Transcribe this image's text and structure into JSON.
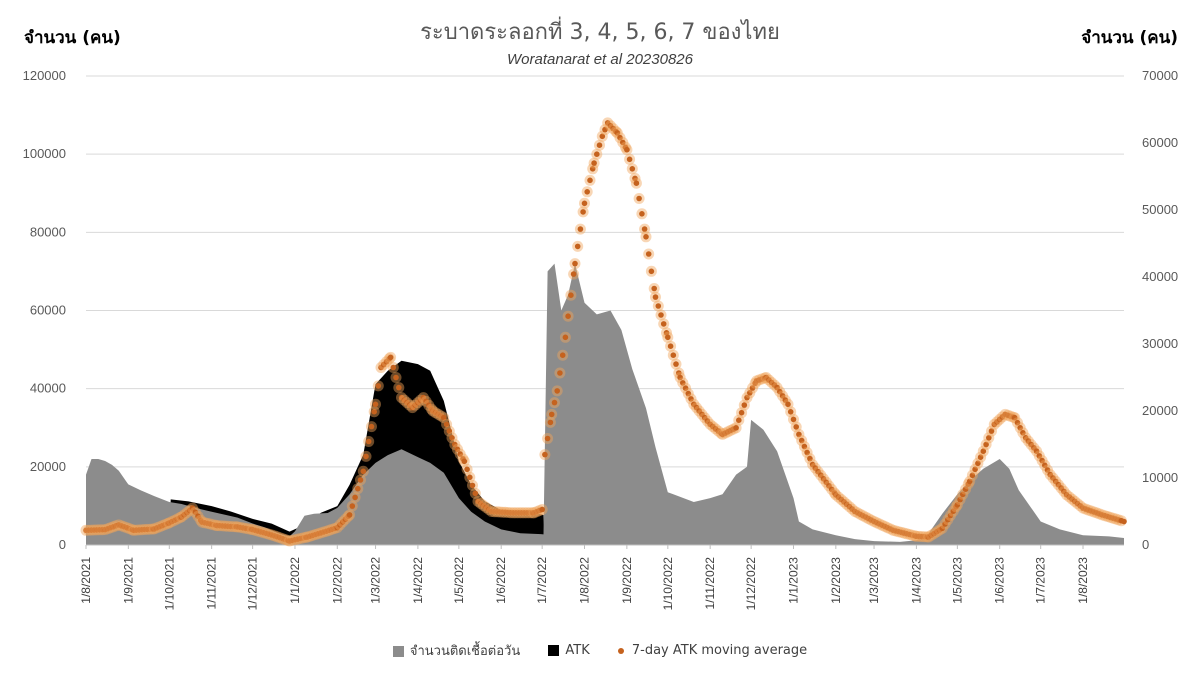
{
  "colors": {
    "cases": "#8c8c8c",
    "atk": "#000000",
    "ma": "#c5621e",
    "ma_glow": "#f0a55a",
    "grid": "#d9d9d9"
  },
  "chart_data": {
    "type": "area",
    "title": "ระบาดระลอกที่ 3, 4, 5, 6, 7 ของไทย",
    "subtitle": "Woratanarat et al 20230826",
    "ylabel_left": "จำนวน (คน)",
    "ylabel_right": "จำนวน (คน)",
    "ylim_left": [
      0,
      120000
    ],
    "ylim_right": [
      0,
      70000
    ],
    "yticks_left": [
      "0",
      "20000",
      "40000",
      "60000",
      "80000",
      "100000",
      "120000"
    ],
    "yticks_right": [
      "0",
      "10000",
      "20000",
      "30000",
      "40000",
      "50000",
      "60000",
      "70000"
    ],
    "x_start": "2021-08-01",
    "x_end": "2023-08-31",
    "x_ticks": [
      "1/8/2021",
      "1/9/2021",
      "1/10/2021",
      "1/11/2021",
      "1/12/2021",
      "1/1/2022",
      "1/2/2022",
      "1/3/2022",
      "1/4/2022",
      "1/5/2022",
      "1/6/2022",
      "1/7/2022",
      "1/8/2022",
      "1/9/2022",
      "1/10/2022",
      "1/11/2022",
      "1/12/2022",
      "1/1/2023",
      "1/2/2023",
      "1/3/2023",
      "1/4/2023",
      "1/5/2023",
      "1/6/2023",
      "1/7/2023",
      "1/8/2023"
    ],
    "grid": true,
    "legend_position": "bottom",
    "series": [
      {
        "name": "จำนวนติดเชื้อต่อวัน",
        "kind": "area",
        "axis": "left",
        "points": [
          [
            "2021-08-01",
            18000
          ],
          [
            "2021-08-05",
            22000
          ],
          [
            "2021-08-10",
            22000
          ],
          [
            "2021-08-15",
            21500
          ],
          [
            "2021-08-20",
            20500
          ],
          [
            "2021-08-25",
            19000
          ],
          [
            "2021-09-01",
            15500
          ],
          [
            "2021-09-10",
            14000
          ],
          [
            "2021-09-20",
            12500
          ],
          [
            "2021-10-01",
            11000
          ],
          [
            "2021-10-10",
            10500
          ],
          [
            "2021-10-20",
            9500
          ],
          [
            "2021-11-01",
            8500
          ],
          [
            "2021-11-10",
            7800
          ],
          [
            "2021-11-20",
            7000
          ],
          [
            "2021-12-01",
            5500
          ],
          [
            "2021-12-10",
            4500
          ],
          [
            "2021-12-20",
            3000
          ],
          [
            "2021-12-28",
            2200
          ],
          [
            "2022-01-01",
            3500
          ],
          [
            "2022-01-08",
            7500
          ],
          [
            "2022-01-15",
            8000
          ],
          [
            "2022-01-25",
            8200
          ],
          [
            "2022-02-01",
            9500
          ],
          [
            "2022-02-10",
            13000
          ],
          [
            "2022-02-20",
            18000
          ],
          [
            "2022-03-01",
            21000
          ],
          [
            "2022-03-10",
            23000
          ],
          [
            "2022-03-20",
            24500
          ],
          [
            "2022-04-01",
            22500
          ],
          [
            "2022-04-10",
            21000
          ],
          [
            "2022-04-20",
            18500
          ],
          [
            "2022-05-01",
            12000
          ],
          [
            "2022-05-10",
            8500
          ],
          [
            "2022-05-20",
            6000
          ],
          [
            "2022-06-01",
            4000
          ],
          [
            "2022-06-15",
            3000
          ],
          [
            "2022-06-30",
            2800
          ],
          [
            "2022-07-02",
            2700
          ],
          [
            "2022-07-05",
            70000
          ],
          [
            "2022-07-10",
            72000
          ],
          [
            "2022-07-15",
            60000
          ],
          [
            "2022-07-20",
            64000
          ],
          [
            "2022-07-25",
            72000
          ],
          [
            "2022-08-01",
            62000
          ],
          [
            "2022-08-10",
            59000
          ],
          [
            "2022-08-20",
            60000
          ],
          [
            "2022-08-28",
            55000
          ],
          [
            "2022-09-05",
            45000
          ],
          [
            "2022-09-15",
            35000
          ],
          [
            "2022-09-22",
            25000
          ],
          [
            "2022-10-01",
            13500
          ],
          [
            "2022-10-05",
            13000
          ],
          [
            "2022-10-20",
            11000
          ],
          [
            "2022-11-01",
            12000
          ],
          [
            "2022-11-10",
            13000
          ],
          [
            "2022-11-20",
            18000
          ],
          [
            "2022-11-28",
            20000
          ],
          [
            "2022-12-01",
            32000
          ],
          [
            "2022-12-10",
            29500
          ],
          [
            "2022-12-20",
            24000
          ],
          [
            "2022-12-26",
            18000
          ],
          [
            "2023-01-01",
            12000
          ],
          [
            "2023-01-05",
            6000
          ],
          [
            "2023-01-15",
            4000
          ],
          [
            "2023-02-01",
            2500
          ],
          [
            "2023-02-15",
            1500
          ],
          [
            "2023-03-01",
            1000
          ],
          [
            "2023-03-20",
            800
          ],
          [
            "2023-04-01",
            1200
          ],
          [
            "2023-04-10",
            3000
          ],
          [
            "2023-04-20",
            8000
          ],
          [
            "2023-05-01",
            13000
          ],
          [
            "2023-05-10",
            16500
          ],
          [
            "2023-05-20",
            19500
          ],
          [
            "2023-06-01",
            22000
          ],
          [
            "2023-06-08",
            19500
          ],
          [
            "2023-06-15",
            14000
          ],
          [
            "2023-06-25",
            9000
          ],
          [
            "2023-07-01",
            6000
          ],
          [
            "2023-07-15",
            4000
          ],
          [
            "2023-08-01",
            2500
          ],
          [
            "2023-08-20",
            2200
          ],
          [
            "2023-08-31",
            1800
          ]
        ]
      },
      {
        "name": "ATK",
        "kind": "area",
        "axis": "right",
        "points": [
          [
            "2021-08-01",
            0
          ],
          [
            "2021-10-01",
            0
          ],
          [
            "2021-10-02",
            6800
          ],
          [
            "2021-10-15",
            6500
          ],
          [
            "2021-11-01",
            5800
          ],
          [
            "2021-11-15",
            5000
          ],
          [
            "2021-12-01",
            3900
          ],
          [
            "2021-12-15",
            3200
          ],
          [
            "2021-12-28",
            2000
          ],
          [
            "2022-01-08",
            3000
          ],
          [
            "2022-01-20",
            4800
          ],
          [
            "2022-02-01",
            5800
          ],
          [
            "2022-02-10",
            9000
          ],
          [
            "2022-02-20",
            13500
          ],
          [
            "2022-03-01",
            24000
          ],
          [
            "2022-03-10",
            26000
          ],
          [
            "2022-03-20",
            27500
          ],
          [
            "2022-04-01",
            27000
          ],
          [
            "2022-04-10",
            26000
          ],
          [
            "2022-04-20",
            21500
          ],
          [
            "2022-05-01",
            12500
          ],
          [
            "2022-05-10",
            9000
          ],
          [
            "2022-05-20",
            6500
          ],
          [
            "2022-06-01",
            5200
          ],
          [
            "2022-06-15",
            4800
          ],
          [
            "2022-06-30",
            4600
          ],
          [
            "2022-07-02",
            4500
          ],
          [
            "2022-07-03",
            0
          ],
          [
            "2023-08-31",
            0
          ]
        ]
      },
      {
        "name": "7-day ATK moving average",
        "kind": "dots",
        "axis": "right",
        "points": [
          [
            "2021-08-01",
            2200
          ],
          [
            "2021-08-15",
            2300
          ],
          [
            "2021-08-25",
            3000
          ],
          [
            "2021-09-05",
            2200
          ],
          [
            "2021-09-20",
            2400
          ],
          [
            "2021-10-01",
            3300
          ],
          [
            "2021-10-10",
            4200
          ],
          [
            "2021-10-18",
            5500
          ],
          [
            "2021-10-25",
            3400
          ],
          [
            "2021-11-05",
            2900
          ],
          [
            "2021-11-20",
            2700
          ],
          [
            "2021-12-01",
            2300
          ],
          [
            "2021-12-15",
            1500
          ],
          [
            "2021-12-28",
            600
          ],
          [
            "2022-01-10",
            1200
          ],
          [
            "2022-01-20",
            1800
          ],
          [
            "2022-02-01",
            2600
          ],
          [
            "2022-02-10",
            4500
          ],
          [
            "2022-02-20",
            11000
          ],
          [
            "2022-03-01",
            21000
          ],
          [
            "2022-03-05",
            26500
          ],
          [
            "2022-03-12",
            28000
          ],
          [
            "2022-03-20",
            22000
          ],
          [
            "2022-03-28",
            20500
          ],
          [
            "2022-04-05",
            22000
          ],
          [
            "2022-04-12",
            20000
          ],
          [
            "2022-04-20",
            19000
          ],
          [
            "2022-04-28",
            15000
          ],
          [
            "2022-05-05",
            12500
          ],
          [
            "2022-05-15",
            6500
          ],
          [
            "2022-05-25",
            5000
          ],
          [
            "2022-06-10",
            4800
          ],
          [
            "2022-06-25",
            4800
          ],
          [
            "2022-07-01",
            5300
          ],
          [
            "2022-07-03",
            13500
          ],
          [
            "2022-07-08",
            19500
          ],
          [
            "2022-07-12",
            23000
          ],
          [
            "2022-07-18",
            31000
          ],
          [
            "2022-07-25",
            42000
          ],
          [
            "2022-08-01",
            51000
          ],
          [
            "2022-08-08",
            57000
          ],
          [
            "2022-08-14",
            61000
          ],
          [
            "2022-08-18",
            63000
          ],
          [
            "2022-08-25",
            61500
          ],
          [
            "2022-09-01",
            59000
          ],
          [
            "2022-09-08",
            54000
          ],
          [
            "2022-09-15",
            46000
          ],
          [
            "2022-09-22",
            37000
          ],
          [
            "2022-10-01",
            31000
          ],
          [
            "2022-10-10",
            25000
          ],
          [
            "2022-10-20",
            21000
          ],
          [
            "2022-11-01",
            18000
          ],
          [
            "2022-11-10",
            16500
          ],
          [
            "2022-11-20",
            17500
          ],
          [
            "2022-11-28",
            22000
          ],
          [
            "2022-12-05",
            24500
          ],
          [
            "2022-12-12",
            25000
          ],
          [
            "2022-12-20",
            23500
          ],
          [
            "2022-12-28",
            21000
          ],
          [
            "2023-01-05",
            16500
          ],
          [
            "2023-01-15",
            12000
          ],
          [
            "2023-02-01",
            7500
          ],
          [
            "2023-02-15",
            5000
          ],
          [
            "2023-03-01",
            3500
          ],
          [
            "2023-03-15",
            2200
          ],
          [
            "2023-04-01",
            1300
          ],
          [
            "2023-04-10",
            1200
          ],
          [
            "2023-04-20",
            2500
          ],
          [
            "2023-05-01",
            6000
          ],
          [
            "2023-05-10",
            9500
          ],
          [
            "2023-05-20",
            14000
          ],
          [
            "2023-05-28",
            18000
          ],
          [
            "2023-06-05",
            19500
          ],
          [
            "2023-06-12",
            19000
          ],
          [
            "2023-06-20",
            16000
          ],
          [
            "2023-06-28",
            14000
          ],
          [
            "2023-07-08",
            10500
          ],
          [
            "2023-07-20",
            7500
          ],
          [
            "2023-08-01",
            5500
          ],
          [
            "2023-08-15",
            4500
          ],
          [
            "2023-08-31",
            3500
          ]
        ]
      }
    ]
  }
}
